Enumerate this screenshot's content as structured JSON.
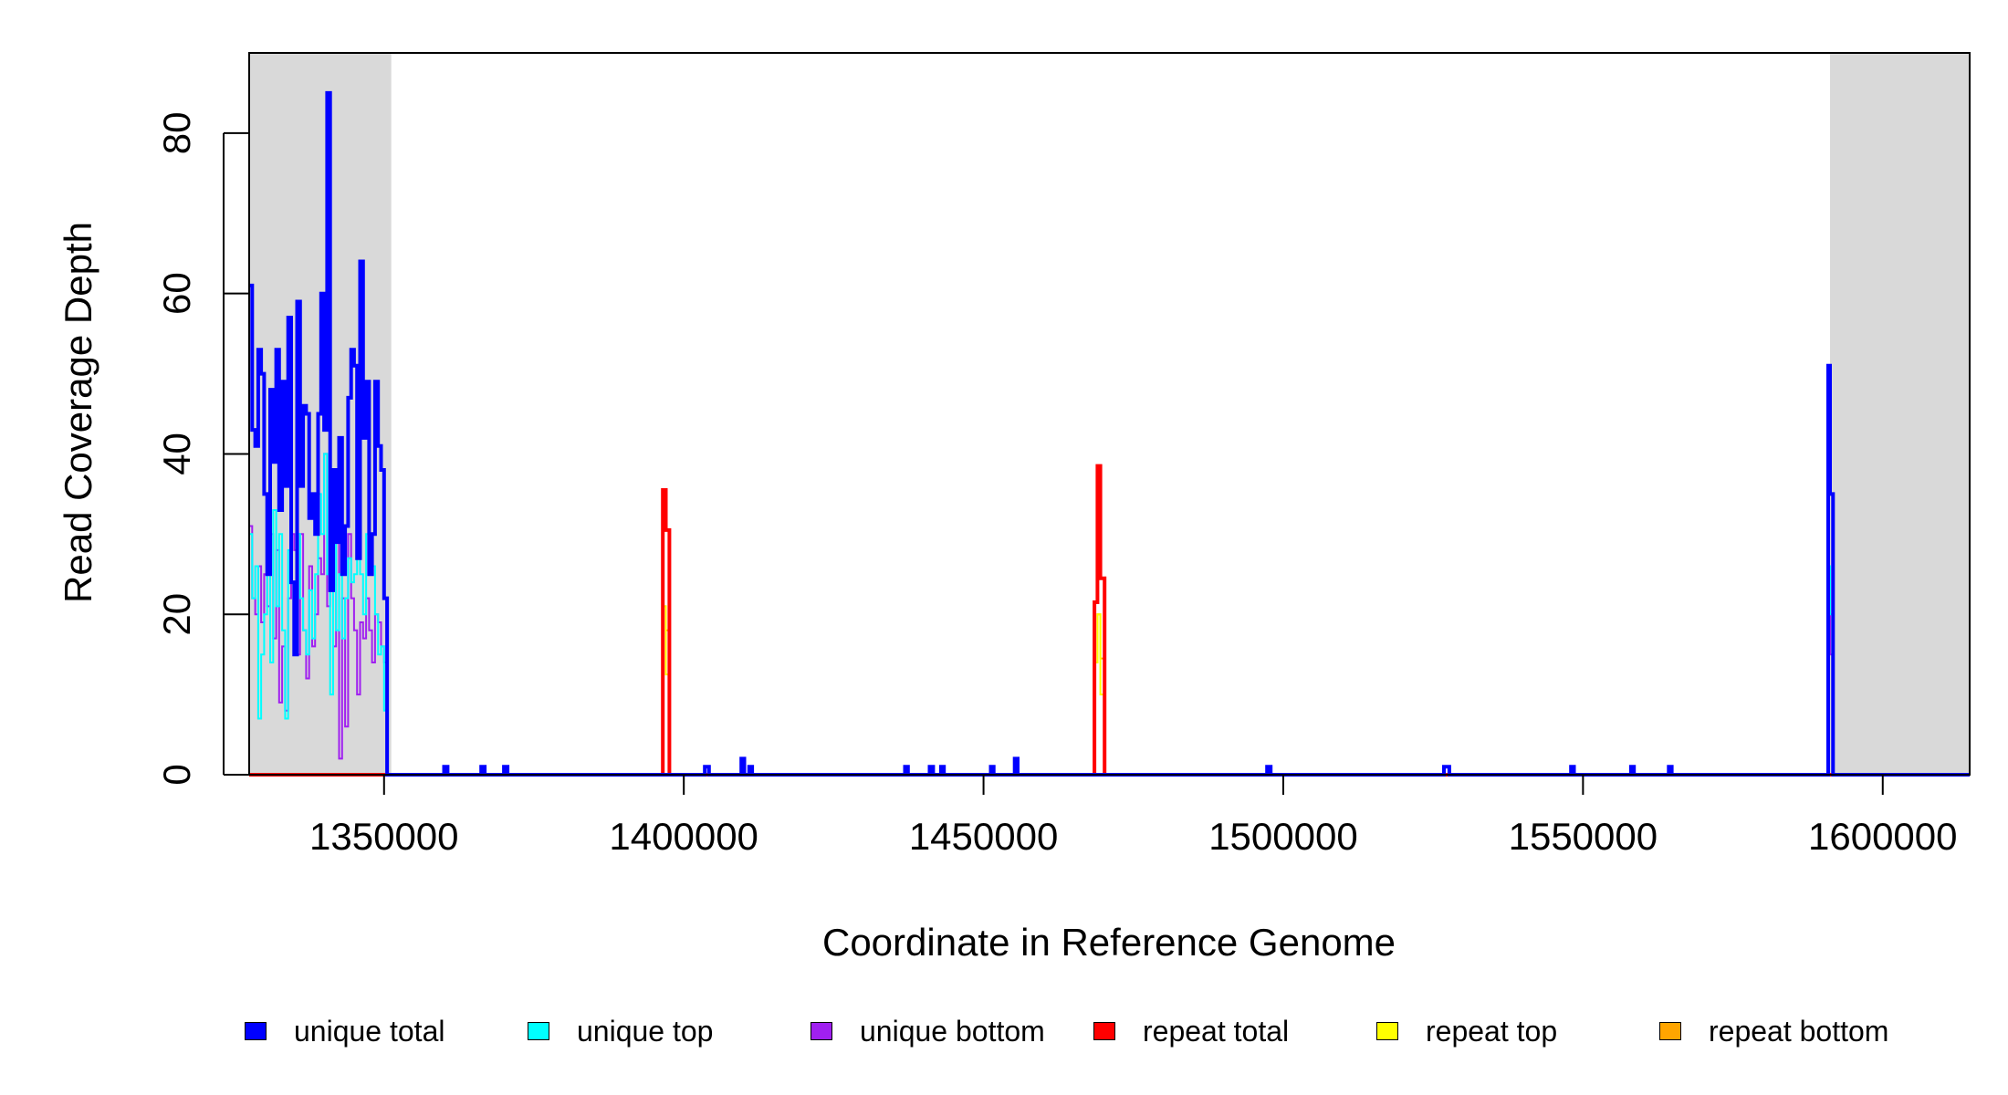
{
  "chart_data": {
    "type": "line",
    "title": "",
    "xlabel": "Coordinate in Reference Genome",
    "ylabel": "Read Coverage Depth",
    "xlim": [
      1327500,
      1614500
    ],
    "ylim": [
      0,
      90
    ],
    "x_ticks": [
      1350000,
      1400000,
      1450000,
      1500000,
      1550000,
      1600000
    ],
    "x_tick_labels": [
      "1350000",
      "1400000",
      "1450000",
      "1500000",
      "1550000",
      "1600000"
    ],
    "y_ticks": [
      0,
      20,
      40,
      60,
      80
    ],
    "y_tick_labels": [
      "0",
      "20",
      "40",
      "60",
      "80"
    ],
    "shaded_regions": [
      [
        1327500,
        1351200
      ],
      [
        1591200,
        1614500
      ]
    ],
    "legend_position": "bottom",
    "series": [
      {
        "name": "unique total",
        "color": "#0000FF",
        "x": [
          1327500,
          1328000,
          1328500,
          1329000,
          1329500,
          1330000,
          1330500,
          1331000,
          1331500,
          1332000,
          1332500,
          1333000,
          1333500,
          1334000,
          1334500,
          1335000,
          1335500,
          1336000,
          1336500,
          1337000,
          1337500,
          1338000,
          1338500,
          1339000,
          1339500,
          1340000,
          1340500,
          1341000,
          1341500,
          1342000,
          1342500,
          1343000,
          1343500,
          1344000,
          1344500,
          1345000,
          1345500,
          1346000,
          1346500,
          1347000,
          1347500,
          1348000,
          1348500,
          1349000,
          1349500,
          1350000,
          1350500,
          1351200,
          1360000,
          1360600,
          1366200,
          1366800,
          1370000,
          1370600,
          1396000,
          1396500,
          1397000,
          1397600,
          1403500,
          1404200,
          1409600,
          1410100,
          1410900,
          1411400,
          1436900,
          1437400,
          1441000,
          1441600,
          1442900,
          1443400,
          1451200,
          1451700,
          1455200,
          1455700,
          1468000,
          1468500,
          1469000,
          1469500,
          1470200,
          1497300,
          1497900,
          1526800,
          1527700,
          1548000,
          1548500,
          1558000,
          1558500,
          1564300,
          1564800,
          1590900,
          1591200,
          1591700,
          1614500
        ],
        "values": [
          61,
          43,
          41,
          53,
          50,
          35,
          25,
          48,
          39,
          53,
          33,
          49,
          36,
          57,
          24,
          15,
          59,
          36,
          46,
          45,
          32,
          35,
          30,
          45,
          60,
          43,
          85,
          23,
          38,
          29,
          42,
          25,
          31,
          47,
          53,
          51,
          27,
          64,
          42,
          49,
          25,
          30,
          49,
          41,
          38,
          22,
          0,
          0,
          1,
          0,
          1,
          0,
          1,
          0,
          0,
          0,
          0,
          0,
          1,
          0,
          2,
          0,
          1,
          0,
          1,
          0,
          1,
          0,
          1,
          0,
          1,
          0,
          2,
          0,
          0,
          0,
          0,
          0,
          0,
          1,
          0,
          1,
          0,
          1,
          0,
          1,
          0,
          1,
          0,
          51,
          35,
          0,
          0
        ]
      },
      {
        "name": "unique top",
        "color": "#00FFFF",
        "x": [
          1327500,
          1328000,
          1328500,
          1329000,
          1329500,
          1330000,
          1330500,
          1331000,
          1331500,
          1332000,
          1332500,
          1333000,
          1333500,
          1334000,
          1334500,
          1335000,
          1335500,
          1336000,
          1336500,
          1337000,
          1337500,
          1338000,
          1338500,
          1339000,
          1339500,
          1340000,
          1340500,
          1341000,
          1341500,
          1342000,
          1342500,
          1343000,
          1343500,
          1344000,
          1344500,
          1345000,
          1345500,
          1346000,
          1346500,
          1347000,
          1347500,
          1348000,
          1348500,
          1349000,
          1349500,
          1350000,
          1350500,
          1351200,
          1403500,
          1404200,
          1410900,
          1411400,
          1441000,
          1441600,
          1442900,
          1443400,
          1451200,
          1451700,
          1455200,
          1455700,
          1526800,
          1527700,
          1548000,
          1548500,
          1558000,
          1558500,
          1564300,
          1564800,
          1590900,
          1591200,
          1591700,
          1614500
        ],
        "values": [
          30,
          22,
          26,
          7,
          15,
          20,
          27,
          14,
          33,
          21,
          30,
          18,
          7,
          28,
          24,
          20,
          30,
          22,
          18,
          15,
          23,
          17,
          25,
          35,
          30,
          40,
          25,
          10,
          36,
          18,
          25,
          17,
          22,
          27,
          24,
          25,
          33,
          25,
          20,
          30,
          27,
          26,
          20,
          15,
          16,
          8,
          0,
          0,
          1,
          0,
          1,
          0,
          1,
          0,
          1,
          0,
          1,
          0,
          2,
          0,
          1,
          0,
          1,
          0,
          1,
          0,
          1,
          0,
          26,
          20,
          0,
          0
        ]
      },
      {
        "name": "unique bottom",
        "color": "#A020F0",
        "x": [
          1327500,
          1328000,
          1328500,
          1329000,
          1329500,
          1330000,
          1330500,
          1331000,
          1331500,
          1332000,
          1332500,
          1333000,
          1333500,
          1334000,
          1334500,
          1335000,
          1335500,
          1336000,
          1336500,
          1337000,
          1337500,
          1338000,
          1338500,
          1339000,
          1339500,
          1340000,
          1340500,
          1341000,
          1341500,
          1342000,
          1342500,
          1343000,
          1343500,
          1344000,
          1344500,
          1345000,
          1345500,
          1346000,
          1346500,
          1347000,
          1347500,
          1348000,
          1348500,
          1349000,
          1349500,
          1350000,
          1350500,
          1351200,
          1360000,
          1360600,
          1366200,
          1366800,
          1403500,
          1404200,
          1409600,
          1410100,
          1436900,
          1437400,
          1497300,
          1497900,
          1526800,
          1527700,
          1590900,
          1591200,
          1591700,
          1614500
        ],
        "values": [
          31,
          22,
          20,
          26,
          19,
          25,
          21,
          30,
          17,
          28,
          9,
          16,
          8,
          22,
          30,
          28,
          15,
          30,
          18,
          12,
          26,
          16,
          20,
          27,
          25,
          40,
          21,
          35,
          16,
          30,
          2,
          22,
          6,
          30,
          22,
          18,
          10,
          19,
          17,
          22,
          18,
          14,
          20,
          19,
          16,
          14,
          0,
          0,
          1,
          0,
          1,
          0,
          1,
          0,
          1,
          0,
          1,
          0,
          1,
          0,
          1,
          0,
          25,
          15,
          0,
          0
        ]
      },
      {
        "name": "repeat total",
        "color": "#FF0000",
        "x": [
          1327500,
          1396000,
          1396500,
          1397000,
          1397600,
          1468000,
          1468500,
          1469000,
          1469500,
          1470200,
          1614500
        ],
        "values": [
          0,
          0,
          35.5,
          30.5,
          0,
          0,
          21.5,
          38.5,
          24.5,
          0,
          0
        ]
      },
      {
        "name": "repeat top",
        "color": "#FFFF00",
        "x": [
          1327500,
          1396000,
          1396500,
          1397000,
          1397600,
          1468000,
          1468500,
          1469000,
          1469500,
          1470200,
          1614500
        ],
        "values": [
          0,
          0,
          21,
          12.5,
          0,
          0,
          14,
          20,
          10,
          0,
          0
        ]
      },
      {
        "name": "repeat bottom",
        "color": "#FFA500",
        "x": [
          1327500,
          1396000,
          1396500,
          1397000,
          1397600,
          1468000,
          1468500,
          1469000,
          1469500,
          1470200,
          1614500
        ],
        "values": [
          0,
          0,
          21,
          18,
          0,
          0,
          14,
          20,
          14.5,
          0,
          0
        ]
      }
    ]
  }
}
